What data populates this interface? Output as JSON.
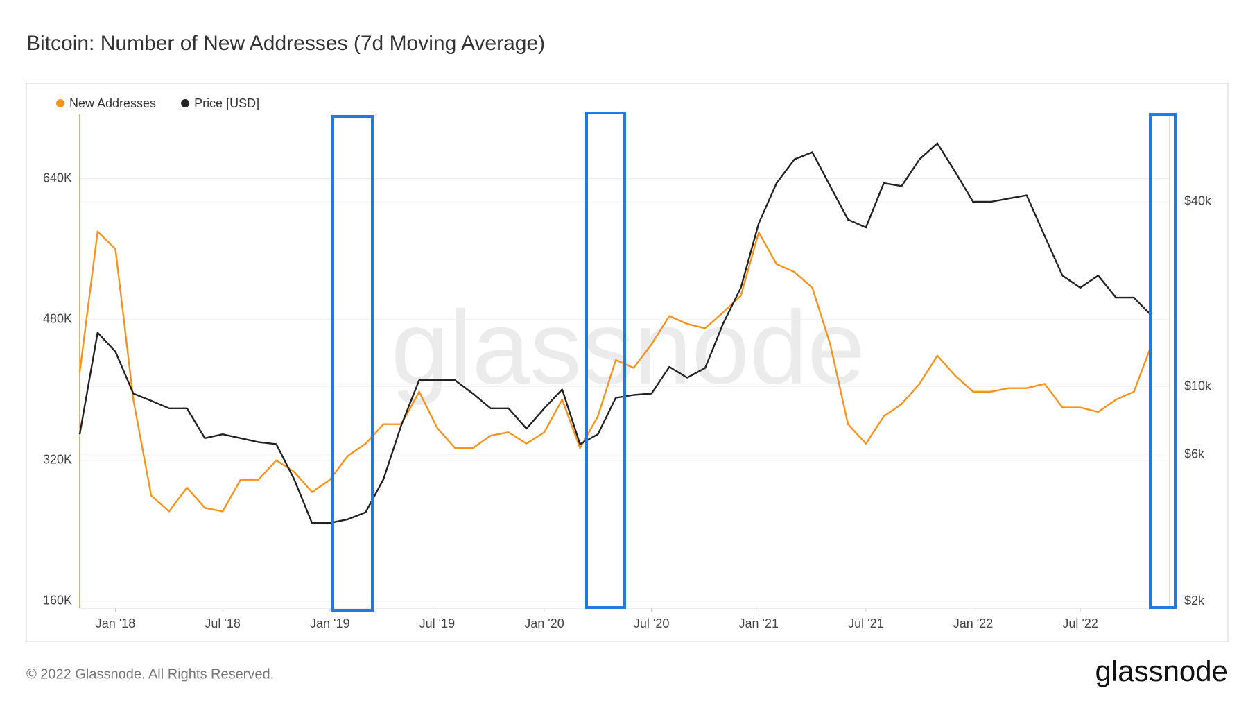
{
  "chart_data": {
    "type": "line",
    "title": "Bitcoin: Number of New Addresses (7d Moving Average)",
    "watermark": "glassnode",
    "copyright": "© 2022 Glassnode. All Rights Reserved.",
    "logo": "glassnode",
    "x": [
      "2017-11",
      "2017-12",
      "2018-01",
      "2018-02",
      "2018-03",
      "2018-04",
      "2018-05",
      "2018-06",
      "2018-07",
      "2018-08",
      "2018-09",
      "2018-10",
      "2018-11",
      "2018-12",
      "2019-01",
      "2019-02",
      "2019-03",
      "2019-04",
      "2019-05",
      "2019-06",
      "2019-07",
      "2019-08",
      "2019-09",
      "2019-10",
      "2019-11",
      "2019-12",
      "2020-01",
      "2020-02",
      "2020-03",
      "2020-04",
      "2020-05",
      "2020-06",
      "2020-07",
      "2020-08",
      "2020-09",
      "2020-10",
      "2020-11",
      "2020-12",
      "2021-01",
      "2021-02",
      "2021-03",
      "2021-04",
      "2021-05",
      "2021-06",
      "2021-07",
      "2021-08",
      "2021-09",
      "2021-10",
      "2021-11",
      "2021-12",
      "2022-01",
      "2022-02",
      "2022-03",
      "2022-04",
      "2022-05",
      "2022-06",
      "2022-07",
      "2022-08",
      "2022-09",
      "2022-10",
      "2022-11"
    ],
    "xlim": [
      "2017-11",
      "2022-12"
    ],
    "xticks": [
      {
        "value": "2018-01",
        "label": "Jan '18"
      },
      {
        "value": "2018-07",
        "label": "Jul '18"
      },
      {
        "value": "2019-01",
        "label": "Jan '19"
      },
      {
        "value": "2019-07",
        "label": "Jul '19"
      },
      {
        "value": "2020-01",
        "label": "Jan '20"
      },
      {
        "value": "2020-07",
        "label": "Jul '20"
      },
      {
        "value": "2021-01",
        "label": "Jan '21"
      },
      {
        "value": "2021-07",
        "label": "Jul '21"
      },
      {
        "value": "2022-01",
        "label": "Jan '22"
      },
      {
        "value": "2022-07",
        "label": "Jul '22"
      }
    ],
    "ylim": [
      152000,
      713000
    ],
    "yticks": [
      {
        "value": 160000,
        "label": "160K"
      },
      {
        "value": 320000,
        "label": "320K"
      },
      {
        "value": 480000,
        "label": "480K"
      },
      {
        "value": 640000,
        "label": "640K"
      }
    ],
    "y2lim": [
      1900,
      77000
    ],
    "y2scale": "log",
    "y2ticks": [
      {
        "value": 2000,
        "label": "$2k"
      },
      {
        "value": 6000,
        "label": "$6k"
      },
      {
        "value": 10000,
        "label": "$10k"
      },
      {
        "value": 40000,
        "label": "$40k"
      }
    ],
    "grid": true,
    "series": [
      {
        "name": "New Addresses",
        "color": "#f7931a",
        "values": [
          420000,
          580000,
          560000,
          389000,
          280000,
          262000,
          289000,
          266000,
          262000,
          298000,
          298000,
          320000,
          307000,
          284000,
          298000,
          325000,
          339000,
          361000,
          361000,
          398000,
          357000,
          334000,
          334000,
          348000,
          352000,
          339000,
          352000,
          389000,
          334000,
          370000,
          434000,
          425000,
          452000,
          484000,
          475000,
          470000,
          488000,
          507000,
          579000,
          543000,
          534000,
          516000,
          452000,
          361000,
          339000,
          370000,
          384000,
          407000,
          439000,
          416000,
          398000,
          398000,
          402000,
          402000,
          407000,
          380000,
          380000,
          375000,
          389000,
          398000,
          452000
        ]
      },
      {
        "name": "Price [USD]",
        "color": "#222222",
        "axis": "y2",
        "values": [
          7000,
          15000,
          13000,
          9500,
          9000,
          8500,
          8500,
          6800,
          7000,
          6800,
          6600,
          6500,
          5000,
          3600,
          3600,
          3700,
          3900,
          5000,
          7500,
          10500,
          10500,
          10500,
          9500,
          8500,
          8500,
          7300,
          8500,
          9800,
          6500,
          7000,
          9200,
          9400,
          9500,
          11600,
          10700,
          11500,
          16000,
          21000,
          34000,
          46000,
          55000,
          58000,
          45000,
          35000,
          33000,
          46000,
          45000,
          55000,
          62000,
          50000,
          40000,
          40000,
          41000,
          42000,
          31000,
          23000,
          21000,
          23000,
          19500,
          19500,
          17000
        ]
      }
    ]
  }
}
